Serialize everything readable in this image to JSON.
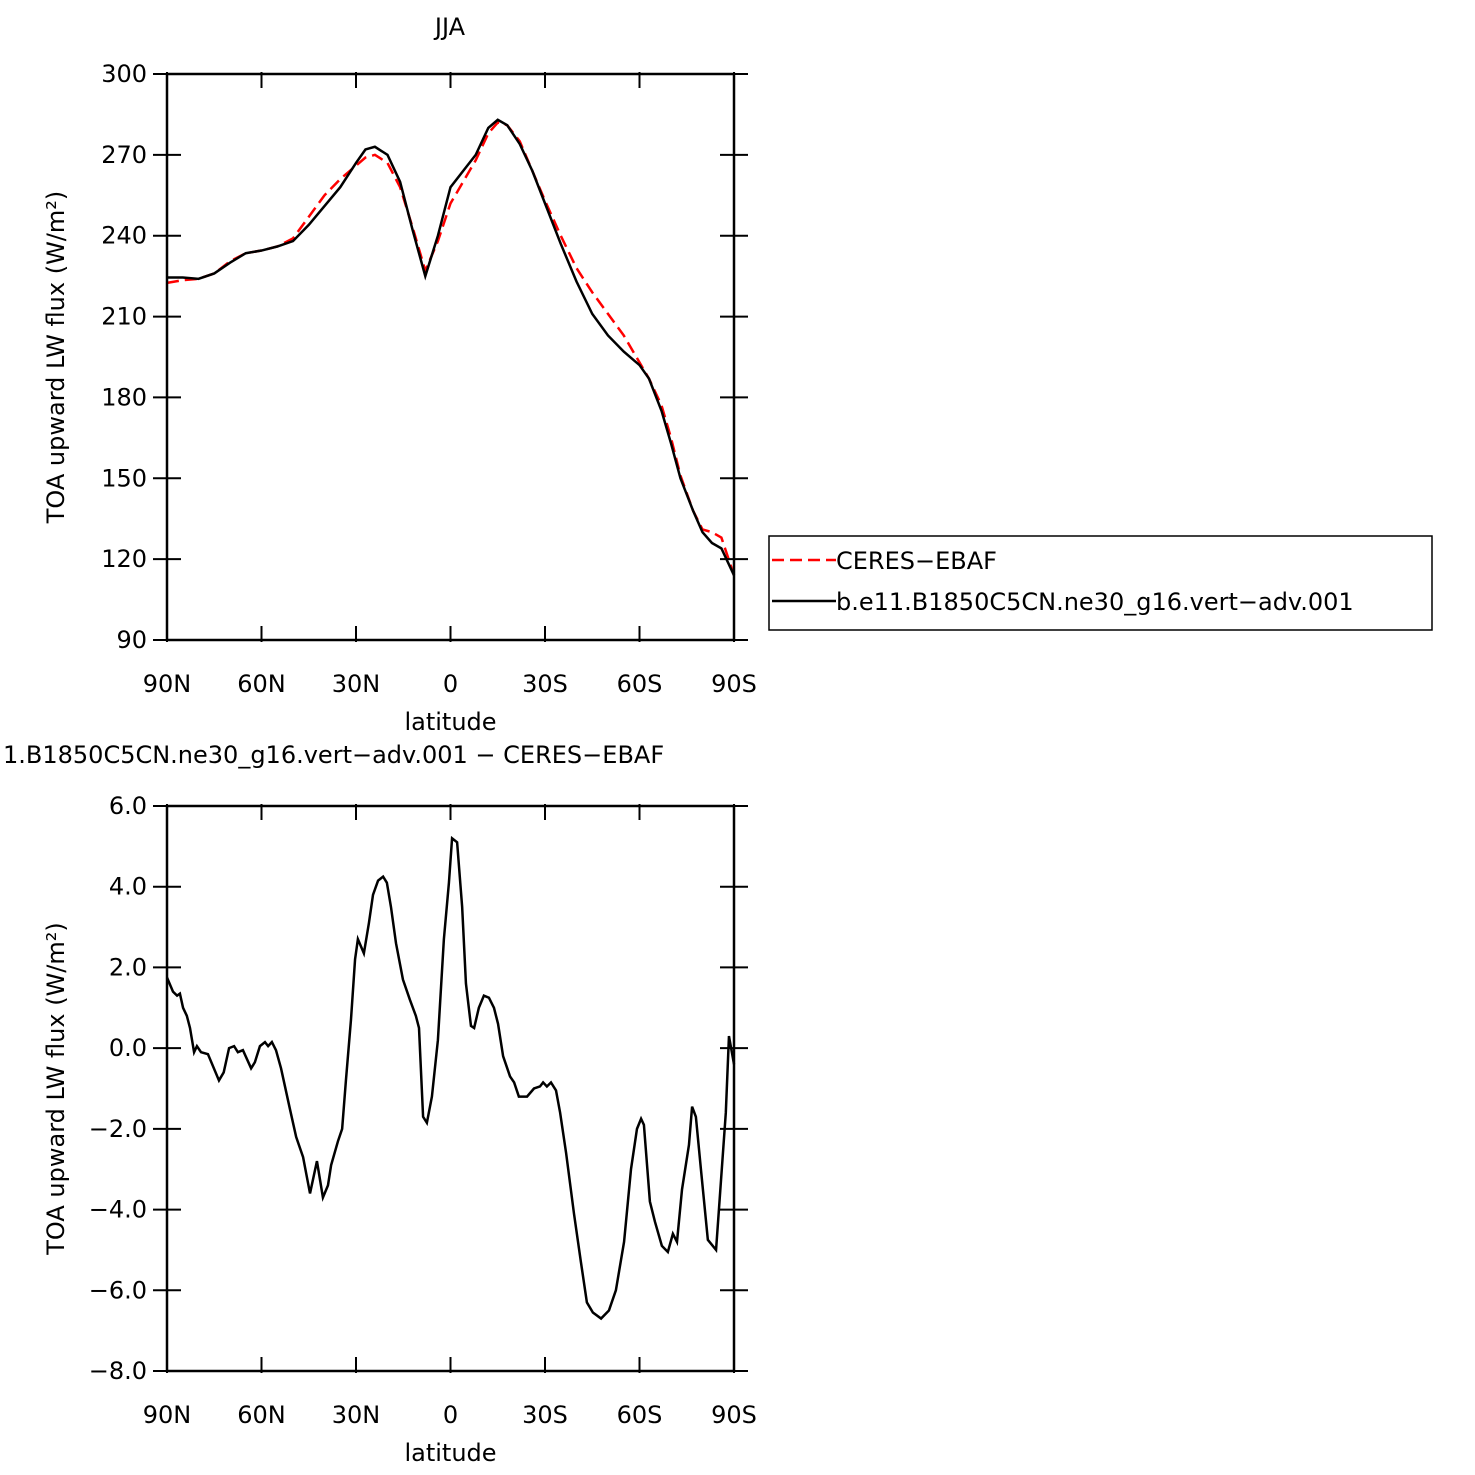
{
  "chart_data": [
    {
      "type": "line",
      "title": "JJA",
      "xlabel": "latitude",
      "ylabel": "TOA upward LW flux (W/m²)",
      "xlim": [
        90,
        -90
      ],
      "xticks": [
        {
          "value": 90,
          "label": "90N"
        },
        {
          "value": 60,
          "label": "60N"
        },
        {
          "value": 30,
          "label": "30N"
        },
        0,
        {
          "value": -30,
          "label": "30S"
        },
        {
          "value": -60,
          "label": "60S"
        },
        {
          "value": -90,
          "label": "90S"
        }
      ],
      "ylim": [
        90,
        300
      ],
      "yticks": [
        90,
        120,
        150,
        180,
        210,
        240,
        270,
        300
      ],
      "legend": "right",
      "x": [
        90,
        85,
        80,
        75,
        70,
        65,
        60,
        55,
        50,
        45,
        40,
        35,
        30,
        27,
        24,
        20,
        16,
        12,
        8,
        4,
        0,
        -4,
        -8,
        -12,
        -15,
        -18,
        -22,
        -26,
        -30,
        -35,
        -40,
        -45,
        -50,
        -55,
        -60,
        -63,
        -67,
        -70,
        -73,
        -77,
        -80,
        -83,
        -86,
        -90
      ],
      "series": [
        {
          "name": "CERES−EBAF",
          "color": "#ff0000",
          "linestyle": "dashed",
          "values": [
            222.5,
            223.5,
            224,
            226,
            230.5,
            233.5,
            234.5,
            236,
            239,
            247,
            255,
            261,
            266,
            269,
            270,
            267,
            258,
            243,
            227,
            238,
            252,
            260,
            268,
            278,
            282,
            281,
            275,
            264,
            253,
            240,
            228,
            219,
            211,
            203,
            193,
            187,
            177,
            165,
            151,
            138,
            131,
            130,
            128,
            114
          ]
        },
        {
          "name": "b.e11.B1850C5CN.ne30_g16.vert−adv.001",
          "color": "#000000",
          "linestyle": "solid",
          "values": [
            224.5,
            224.5,
            224,
            226,
            230,
            233.5,
            234.5,
            236,
            238,
            244,
            251,
            258,
            267,
            272,
            273,
            270,
            260,
            242,
            225,
            240,
            258,
            264,
            270,
            280,
            283,
            281,
            274,
            264,
            252,
            237,
            223,
            211,
            203,
            197,
            192,
            187,
            175,
            163,
            150,
            138,
            130,
            126,
            124,
            114
          ]
        }
      ]
    },
    {
      "type": "line",
      "title": "1.B1850C5CN.ne30_g16.vert−adv.001 − CERES−EBAF",
      "xlabel": "latitude",
      "ylabel": "TOA upward LW flux (W/m²)",
      "xlim": [
        90,
        -90
      ],
      "xticks": [
        {
          "value": 90,
          "label": "90N"
        },
        {
          "value": 60,
          "label": "60N"
        },
        {
          "value": 30,
          "label": "30N"
        },
        0,
        {
          "value": -30,
          "label": "30S"
        },
        {
          "value": -60,
          "label": "60S"
        },
        {
          "value": -90,
          "label": "90S"
        }
      ],
      "ylim": [
        -8,
        6
      ],
      "yticks": [
        {
          "value": -8,
          "label": "−8.0"
        },
        {
          "value": -6,
          "label": "−6.0"
        },
        {
          "value": -4,
          "label": "−4.0"
        },
        {
          "value": -2,
          "label": "−2.0"
        },
        {
          "value": 0,
          "label": "0.0"
        },
        {
          "value": 2,
          "label": "2.0"
        },
        {
          "value": 4,
          "label": "4.0"
        },
        {
          "value": 6,
          "label": "6.0"
        }
      ],
      "x": [
        90,
        88.1,
        86.8,
        85.9,
        84.9,
        83.7,
        82.7,
        81.4,
        80.5,
        79.2,
        77,
        73.5,
        72,
        70.3,
        68.7,
        67.5,
        65.9,
        63.3,
        62.1,
        60.5,
        58.9,
        57.9,
        56.7,
        55.4,
        53.8,
        51,
        49,
        46.8,
        44.6,
        42.4,
        40.5,
        38.9,
        37.9,
        35.7,
        34.4,
        33.2,
        31.6,
        30.3,
        29.4,
        27.5,
        25.9,
        24.6,
        23,
        21.4,
        20.2,
        18.9,
        17.3,
        15.1,
        12.9,
        11,
        10,
        8.7,
        7.5,
        5.9,
        4,
        2.1,
        0.5,
        -0.5,
        -2.1,
        -3.7,
        -4.9,
        -6.5,
        -7.5,
        -9,
        -10.6,
        -12.2,
        -13.8,
        -15.1,
        -16.7,
        -18.9,
        -20.2,
        -21.7,
        -24.3,
        -26.5,
        -28.4,
        -29.4,
        -30.6,
        -31.9,
        -33.5,
        -34.8,
        -36.7,
        -39.2,
        -41.4,
        -43.3,
        -45.2,
        -47.8,
        -50.3,
        -52.5,
        -55.1,
        -57.3,
        -59.2,
        -60.5,
        -61.4,
        -63.3,
        -64.9,
        -67.1,
        -69,
        -70.6,
        -71.9,
        -73.5,
        -75.7,
        -76.7,
        -77.9,
        -79.5,
        -81.7,
        -84.3,
        -87.4,
        -88.4,
        -90
      ],
      "series": [
        {
          "color": "#000000",
          "linestyle": "solid",
          "values": [
            1.75,
            1.4,
            1.3,
            1.35,
            1.0,
            0.8,
            0.5,
            -0.1,
            0.05,
            -0.1,
            -0.15,
            -0.8,
            -0.6,
            0.0,
            0.05,
            -0.1,
            -0.05,
            -0.5,
            -0.35,
            0.05,
            0.15,
            0.05,
            0.15,
            -0.05,
            -0.5,
            -1.5,
            -2.2,
            -2.7,
            -3.6,
            -2.8,
            -3.7,
            -3.4,
            -2.9,
            -2.3,
            -2.0,
            -0.8,
            0.7,
            2.2,
            2.7,
            2.35,
            3.1,
            3.8,
            4.15,
            4.25,
            4.1,
            3.5,
            2.6,
            1.7,
            1.2,
            0.8,
            0.5,
            -1.7,
            -1.85,
            -1.2,
            0.2,
            2.7,
            4.1,
            5.2,
            5.1,
            3.5,
            1.6,
            0.55,
            0.5,
            1.0,
            1.3,
            1.25,
            1.0,
            0.6,
            -0.2,
            -0.7,
            -0.85,
            -1.2,
            -1.2,
            -1.0,
            -0.95,
            -0.85,
            -0.95,
            -0.85,
            -1.05,
            -1.6,
            -2.6,
            -4.1,
            -5.3,
            -6.3,
            -6.55,
            -6.7,
            -6.5,
            -6.0,
            -4.8,
            -3.0,
            -2.0,
            -1.75,
            -1.9,
            -3.8,
            -4.3,
            -4.9,
            -5.05,
            -4.6,
            -4.8,
            -3.5,
            -2.4,
            -1.45,
            -1.7,
            -3.0,
            -4.75,
            -5.0,
            -1.6,
            0.3,
            -0.4
          ]
        }
      ]
    }
  ]
}
